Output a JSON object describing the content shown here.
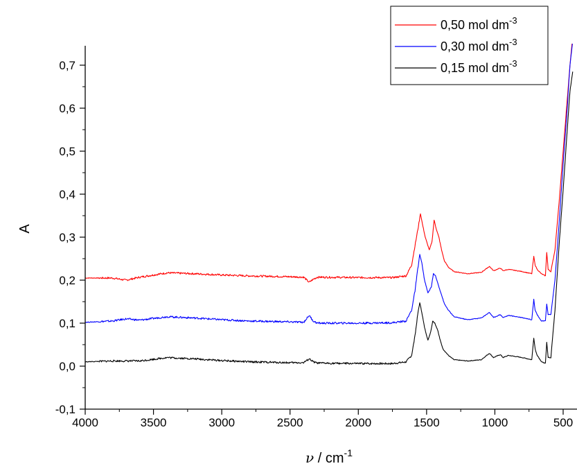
{
  "chart_data": {
    "type": "line",
    "title": "",
    "xlabel": "ν / cm⁻¹",
    "ylabel": "A",
    "xlim": [
      4000,
      420
    ],
    "ylim": [
      -0.1,
      0.75
    ],
    "x_ticks": [
      4000,
      3500,
      3000,
      2500,
      2000,
      1500,
      1000,
      500
    ],
    "x_tick_labels": [
      "4000",
      "3500",
      "3000",
      "2500",
      "2000",
      "1500",
      "1000",
      "500"
    ],
    "y_ticks": [
      -0.1,
      0.0,
      0.1,
      0.2,
      0.3,
      0.4,
      0.5,
      0.6,
      0.7
    ],
    "y_tick_labels": [
      "-0,1",
      "0,0",
      "0,1",
      "0,2",
      "0,3",
      "0,4",
      "0,5",
      "0,6",
      "0,7"
    ],
    "grid": false,
    "legend_position": "top-right",
    "series": [
      {
        "name": "0,50 mol dm⁻³",
        "color": "#ff0000",
        "points": [
          [
            4000,
            0.205
          ],
          [
            3800,
            0.205
          ],
          [
            3700,
            0.2
          ],
          [
            3600,
            0.207
          ],
          [
            3400,
            0.217
          ],
          [
            3200,
            0.215
          ],
          [
            3000,
            0.212
          ],
          [
            2800,
            0.21
          ],
          [
            2500,
            0.208
          ],
          [
            2400,
            0.207
          ],
          [
            2360,
            0.195
          ],
          [
            2330,
            0.202
          ],
          [
            2300,
            0.207
          ],
          [
            2000,
            0.206
          ],
          [
            1750,
            0.206
          ],
          [
            1650,
            0.21
          ],
          [
            1610,
            0.235
          ],
          [
            1585,
            0.28
          ],
          [
            1560,
            0.325
          ],
          [
            1545,
            0.355
          ],
          [
            1530,
            0.33
          ],
          [
            1510,
            0.3
          ],
          [
            1480,
            0.27
          ],
          [
            1460,
            0.29
          ],
          [
            1445,
            0.34
          ],
          [
            1430,
            0.32
          ],
          [
            1410,
            0.3
          ],
          [
            1390,
            0.27
          ],
          [
            1370,
            0.245
          ],
          [
            1340,
            0.23
          ],
          [
            1300,
            0.22
          ],
          [
            1200,
            0.215
          ],
          [
            1100,
            0.218
          ],
          [
            1040,
            0.232
          ],
          [
            1010,
            0.222
          ],
          [
            960,
            0.228
          ],
          [
            940,
            0.222
          ],
          [
            900,
            0.225
          ],
          [
            800,
            0.22
          ],
          [
            730,
            0.215
          ],
          [
            715,
            0.255
          ],
          [
            705,
            0.235
          ],
          [
            690,
            0.225
          ],
          [
            660,
            0.215
          ],
          [
            630,
            0.21
          ],
          [
            620,
            0.265
          ],
          [
            610,
            0.225
          ],
          [
            590,
            0.22
          ],
          [
            560,
            0.27
          ],
          [
            530,
            0.38
          ],
          [
            500,
            0.5
          ],
          [
            470,
            0.62
          ],
          [
            450,
            0.7
          ],
          [
            435,
            0.75
          ]
        ]
      },
      {
        "name": "0,30 mol dm⁻³",
        "color": "#0000ff",
        "points": [
          [
            4000,
            0.102
          ],
          [
            3800,
            0.105
          ],
          [
            3700,
            0.11
          ],
          [
            3600,
            0.107
          ],
          [
            3400,
            0.115
          ],
          [
            3200,
            0.112
          ],
          [
            3000,
            0.108
          ],
          [
            2800,
            0.105
          ],
          [
            2500,
            0.103
          ],
          [
            2400,
            0.102
          ],
          [
            2360,
            0.118
          ],
          [
            2330,
            0.105
          ],
          [
            2300,
            0.1
          ],
          [
            2000,
            0.1
          ],
          [
            1750,
            0.101
          ],
          [
            1650,
            0.105
          ],
          [
            1610,
            0.13
          ],
          [
            1585,
            0.175
          ],
          [
            1565,
            0.225
          ],
          [
            1550,
            0.26
          ],
          [
            1535,
            0.24
          ],
          [
            1515,
            0.2
          ],
          [
            1490,
            0.17
          ],
          [
            1465,
            0.185
          ],
          [
            1450,
            0.215
          ],
          [
            1435,
            0.21
          ],
          [
            1415,
            0.19
          ],
          [
            1395,
            0.17
          ],
          [
            1370,
            0.145
          ],
          [
            1340,
            0.13
          ],
          [
            1300,
            0.115
          ],
          [
            1200,
            0.108
          ],
          [
            1100,
            0.112
          ],
          [
            1040,
            0.125
          ],
          [
            1010,
            0.113
          ],
          [
            960,
            0.12
          ],
          [
            940,
            0.113
          ],
          [
            900,
            0.118
          ],
          [
            800,
            0.113
          ],
          [
            730,
            0.108
          ],
          [
            715,
            0.155
          ],
          [
            705,
            0.13
          ],
          [
            690,
            0.12
          ],
          [
            660,
            0.105
          ],
          [
            630,
            0.105
          ],
          [
            620,
            0.145
          ],
          [
            610,
            0.12
          ],
          [
            590,
            0.12
          ],
          [
            560,
            0.2
          ],
          [
            530,
            0.33
          ],
          [
            500,
            0.47
          ],
          [
            470,
            0.6
          ],
          [
            450,
            0.7
          ],
          [
            432,
            0.75
          ]
        ]
      },
      {
        "name": "0,15 mol dm⁻³",
        "color": "#000000",
        "points": [
          [
            4000,
            0.01
          ],
          [
            3800,
            0.012
          ],
          [
            3700,
            0.012
          ],
          [
            3600,
            0.012
          ],
          [
            3400,
            0.02
          ],
          [
            3200,
            0.017
          ],
          [
            3000,
            0.013
          ],
          [
            2800,
            0.01
          ],
          [
            2500,
            0.008
          ],
          [
            2400,
            0.008
          ],
          [
            2360,
            0.017
          ],
          [
            2330,
            0.01
          ],
          [
            2300,
            0.007
          ],
          [
            2000,
            0.006
          ],
          [
            1750,
            0.006
          ],
          [
            1650,
            0.01
          ],
          [
            1610,
            0.025
          ],
          [
            1585,
            0.07
          ],
          [
            1565,
            0.12
          ],
          [
            1550,
            0.148
          ],
          [
            1535,
            0.125
          ],
          [
            1515,
            0.09
          ],
          [
            1490,
            0.06
          ],
          [
            1470,
            0.08
          ],
          [
            1455,
            0.105
          ],
          [
            1440,
            0.1
          ],
          [
            1420,
            0.085
          ],
          [
            1400,
            0.06
          ],
          [
            1380,
            0.04
          ],
          [
            1340,
            0.025
          ],
          [
            1300,
            0.015
          ],
          [
            1200,
            0.012
          ],
          [
            1100,
            0.015
          ],
          [
            1040,
            0.03
          ],
          [
            1010,
            0.02
          ],
          [
            960,
            0.027
          ],
          [
            940,
            0.02
          ],
          [
            900,
            0.025
          ],
          [
            800,
            0.02
          ],
          [
            730,
            0.015
          ],
          [
            715,
            0.065
          ],
          [
            705,
            0.04
          ],
          [
            690,
            0.025
          ],
          [
            660,
            0.01
          ],
          [
            630,
            0.007
          ],
          [
            620,
            0.055
          ],
          [
            610,
            0.02
          ],
          [
            590,
            0.02
          ],
          [
            560,
            0.13
          ],
          [
            530,
            0.28
          ],
          [
            500,
            0.41
          ],
          [
            470,
            0.55
          ],
          [
            450,
            0.64
          ],
          [
            430,
            0.685
          ]
        ]
      }
    ]
  }
}
